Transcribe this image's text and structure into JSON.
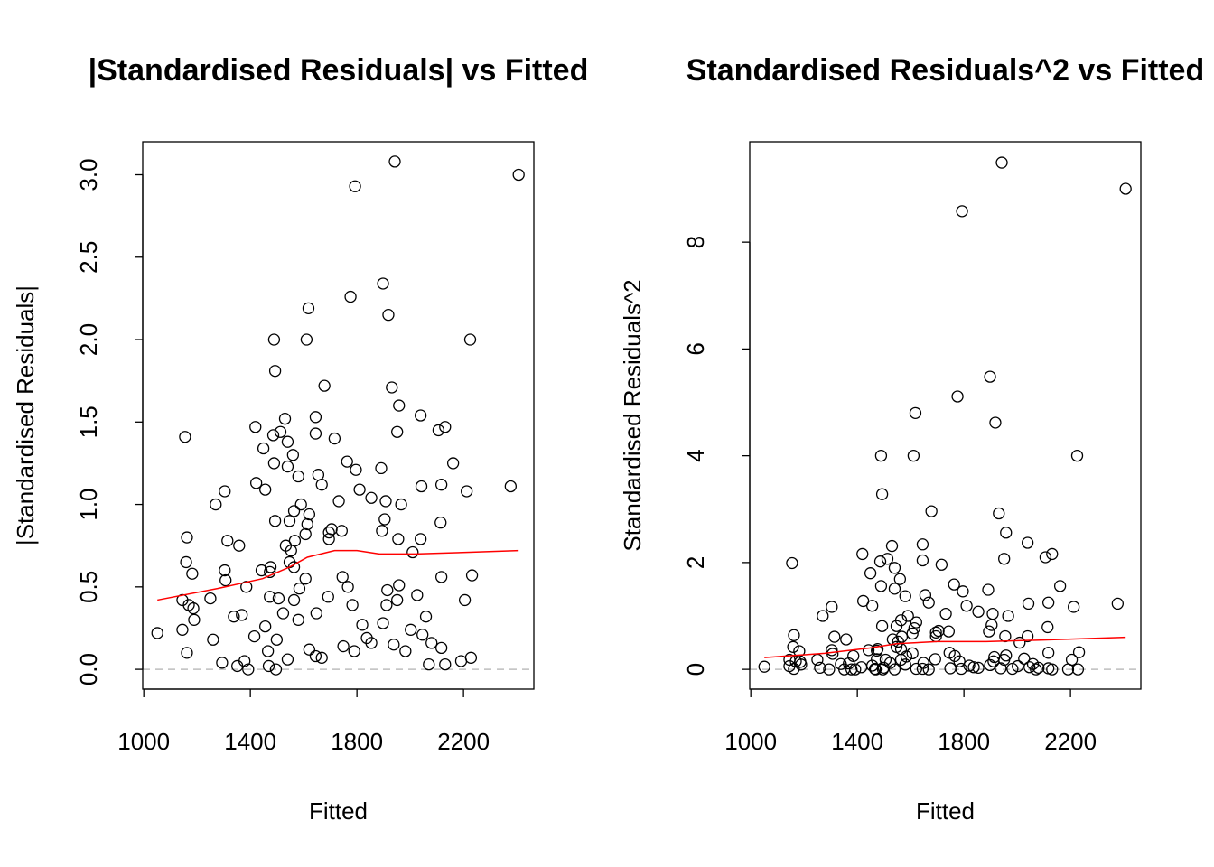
{
  "chart_data": [
    {
      "type": "scatter",
      "title": "|Standardised Residuals| vs Fitted",
      "xlabel": "Fitted",
      "ylabel": "|Standardised Residuals|",
      "xlim": [
        996,
        2464
      ],
      "ylim": [
        -0.12,
        3.2
      ],
      "xticks": [
        1000,
        1400,
        1800,
        2200
      ],
      "yticks": [
        {
          "value": 0,
          "label": "0.0"
        },
        0.5,
        {
          "value": 1,
          "label": "1.0"
        },
        1.5,
        {
          "value": 2,
          "label": "2.0"
        },
        2.5,
        {
          "value": 3,
          "label": "3.0"
        }
      ],
      "series": [
        {
          "color": "#000000",
          "x": [
            1051,
            2407,
            1942,
            1793,
            1776,
            1898,
            1918,
            1618,
            1489,
            1611,
            2225,
            1493,
            1678,
            1931,
            1958,
            2039,
            1645,
            1530,
            1419,
            2131,
            2106,
            1951,
            1513,
            1645,
            1155,
            1716,
            1486,
            1540,
            1449,
            1560,
            2161,
            1763,
            1489,
            1540,
            1891,
            1796,
            1655,
            1422,
            1668,
            2042,
            2377,
            2117,
            1456,
            1810,
            2212,
            1304,
            1580,
            1270,
            1590,
            1732,
            1908,
            1854,
            1966,
            1564,
            1621,
            1493,
            1547,
            1904,
            2114,
            1614,
            1705,
            1607,
            1695,
            1743,
            1894,
            1162,
            1314,
            1567,
            1695,
            1955,
            2039,
            1533,
            1358,
            1553,
            2009,
            1159,
            1547,
            1564,
            1304,
            1442,
            1476,
            1182,
            1746,
            1607,
            1473,
            2117,
            2232,
            1307,
            1958,
            1385,
            1914,
            1766,
            1584,
            1145,
            1250,
            1169,
            1473,
            1692,
            1506,
            1564,
            1783,
            1911,
            1951,
            2026,
            2205,
            1186,
            1648,
            1338,
            1523,
            2059,
            1368,
            1580,
            1189,
            1898,
            1820,
            1456,
            1145,
            1415,
            2002,
            2046,
            1837,
            1260,
            1499,
            2080,
            1938,
            1749,
            2117,
            1466,
            1621,
            1162,
            1982,
            1790,
            1645,
            1854,
            1294,
            1351,
            1378,
            1392,
            1469,
            1496,
            1540,
            1668,
            2070,
            2131,
            2191,
            2228
          ],
          "values": [
            0.22,
            3.0,
            3.08,
            2.93,
            2.26,
            2.34,
            2.15,
            2.19,
            2.0,
            2.0,
            2.0,
            1.81,
            1.72,
            1.71,
            1.6,
            1.54,
            1.53,
            1.52,
            1.47,
            1.47,
            1.45,
            1.44,
            1.44,
            1.43,
            1.41,
            1.4,
            1.42,
            1.38,
            1.34,
            1.3,
            1.25,
            1.26,
            1.25,
            1.23,
            1.22,
            1.21,
            1.18,
            1.13,
            1.12,
            1.11,
            1.11,
            1.12,
            1.09,
            1.09,
            1.08,
            1.08,
            1.17,
            1.0,
            1.0,
            1.02,
            1.02,
            1.04,
            1.0,
            0.96,
            0.94,
            0.9,
            0.9,
            0.91,
            0.89,
            0.88,
            0.85,
            0.82,
            0.83,
            0.84,
            0.84,
            0.8,
            0.78,
            0.78,
            0.79,
            0.79,
            0.79,
            0.75,
            0.75,
            0.72,
            0.71,
            0.65,
            0.65,
            0.62,
            0.6,
            0.6,
            0.62,
            0.58,
            0.56,
            0.55,
            0.59,
            0.56,
            0.57,
            0.54,
            0.51,
            0.5,
            0.48,
            0.5,
            0.49,
            0.42,
            0.43,
            0.39,
            0.44,
            0.44,
            0.43,
            0.42,
            0.39,
            0.39,
            0.42,
            0.45,
            0.42,
            0.37,
            0.34,
            0.32,
            0.34,
            0.32,
            0.33,
            0.3,
            0.3,
            0.28,
            0.27,
            0.26,
            0.24,
            0.2,
            0.24,
            0.21,
            0.19,
            0.18,
            0.18,
            0.16,
            0.15,
            0.14,
            0.13,
            0.11,
            0.12,
            0.1,
            0.11,
            0.11,
            0.08,
            0.16,
            0.04,
            0.02,
            0.05,
            0,
            0.02,
            0,
            0.06,
            0.07,
            0.03,
            0.03,
            0.05,
            0.07
          ]
        }
      ],
      "smooth": {
        "color": "#ff0000",
        "x": [
          1051,
          1277,
          1446,
          1547,
          1614,
          1716,
          1800,
          1884,
          2019,
          2222,
          2407
        ],
        "values": [
          0.42,
          0.49,
          0.55,
          0.62,
          0.68,
          0.72,
          0.72,
          0.7,
          0.7,
          0.71,
          0.72
        ]
      },
      "hline": {
        "value": 0,
        "color": "#bebebe"
      }
    },
    {
      "type": "scatter",
      "title": "Standardised Residuals^2 vs Fitted",
      "xlabel": "Fitted",
      "ylabel": "Standardised Residuals^2",
      "xlim": [
        996,
        2464
      ],
      "ylim": [
        -0.37,
        9.88
      ],
      "xticks": [
        1000,
        1400,
        1800,
        2200
      ],
      "yticks": [
        0,
        2,
        4,
        6,
        8
      ],
      "series": [
        {
          "color": "#000000",
          "x": [
            1051,
            2407,
            1942,
            1793,
            1776,
            1898,
            1918,
            1618,
            1489,
            1611,
            2225,
            1493,
            1678,
            1931,
            1958,
            2039,
            1645,
            1530,
            1419,
            2131,
            2106,
            1951,
            1513,
            1645,
            1155,
            1716,
            1486,
            1540,
            1449,
            1560,
            2161,
            1763,
            1489,
            1540,
            1891,
            1796,
            1655,
            1422,
            1668,
            2042,
            2377,
            2117,
            1456,
            1810,
            2212,
            1304,
            1580,
            1270,
            1590,
            1732,
            1908,
            1854,
            1966,
            1564,
            1621,
            1493,
            1547,
            1904,
            2114,
            1614,
            1705,
            1607,
            1695,
            1743,
            1894,
            1162,
            1314,
            1567,
            1695,
            1955,
            2039,
            1533,
            1358,
            1553,
            2009,
            1159,
            1547,
            1564,
            1304,
            1442,
            1476,
            1182,
            1746,
            1607,
            1473,
            2117,
            2232,
            1307,
            1958,
            1385,
            1914,
            1766,
            1584,
            1145,
            1250,
            1169,
            1473,
            1692,
            1506,
            1564,
            1783,
            1911,
            1951,
            2026,
            2205,
            1186,
            1648,
            1338,
            1523,
            2059,
            1368,
            1580,
            1189,
            1898,
            1820,
            1456,
            1145,
            1415,
            2002,
            2046,
            1837,
            1260,
            1499,
            2080,
            1938,
            1749,
            2117,
            1466,
            1621,
            1162,
            1982,
            1790,
            1645,
            1854,
            1294,
            1351,
            1378,
            1392,
            1469,
            1496,
            1540,
            1668,
            2070,
            2131,
            2191,
            2228
          ],
          "values": [
            0.05,
            9.0,
            9.49,
            8.58,
            5.11,
            5.48,
            4.62,
            4.8,
            4.0,
            4.0,
            4.0,
            3.28,
            2.96,
            2.92,
            2.56,
            2.37,
            2.34,
            2.31,
            2.16,
            2.16,
            2.1,
            2.07,
            2.07,
            2.04,
            1.99,
            1.96,
            2.02,
            1.9,
            1.8,
            1.69,
            1.56,
            1.59,
            1.56,
            1.51,
            1.49,
            1.46,
            1.39,
            1.28,
            1.25,
            1.23,
            1.23,
            1.25,
            1.19,
            1.19,
            1.17,
            1.17,
            1.37,
            1.0,
            1.0,
            1.04,
            1.04,
            1.08,
            1.0,
            0.92,
            0.88,
            0.81,
            0.81,
            0.83,
            0.79,
            0.77,
            0.72,
            0.67,
            0.69,
            0.71,
            0.71,
            0.64,
            0.61,
            0.61,
            0.62,
            0.62,
            0.62,
            0.56,
            0.56,
            0.52,
            0.5,
            0.42,
            0.42,
            0.38,
            0.36,
            0.36,
            0.38,
            0.34,
            0.31,
            0.3,
            0.35,
            0.31,
            0.32,
            0.29,
            0.26,
            0.25,
            0.23,
            0.25,
            0.24,
            0.18,
            0.18,
            0.15,
            0.19,
            0.19,
            0.18,
            0.18,
            0.15,
            0.15,
            0.18,
            0.2,
            0.18,
            0.14,
            0.12,
            0.1,
            0.12,
            0.1,
            0.11,
            0.09,
            0.09,
            0.08,
            0.07,
            0.07,
            0.06,
            0.04,
            0.06,
            0.04,
            0.04,
            0.03,
            0.03,
            0.03,
            0.02,
            0.02,
            0.02,
            0.01,
            0.01,
            0.01,
            0.01,
            0.01,
            0.01,
            0.03,
            0,
            0,
            0,
            0,
            0,
            0,
            0,
            0,
            0,
            0,
            0,
            0
          ]
        }
      ],
      "smooth": {
        "color": "#ff0000",
        "x": [
          1051,
          1277,
          1446,
          1547,
          1700,
          1884,
          2100,
          2407
        ],
        "values": [
          0.22,
          0.3,
          0.4,
          0.48,
          0.52,
          0.52,
          0.55,
          0.6
        ]
      },
      "hline": {
        "value": 0,
        "color": "#bebebe"
      }
    }
  ]
}
